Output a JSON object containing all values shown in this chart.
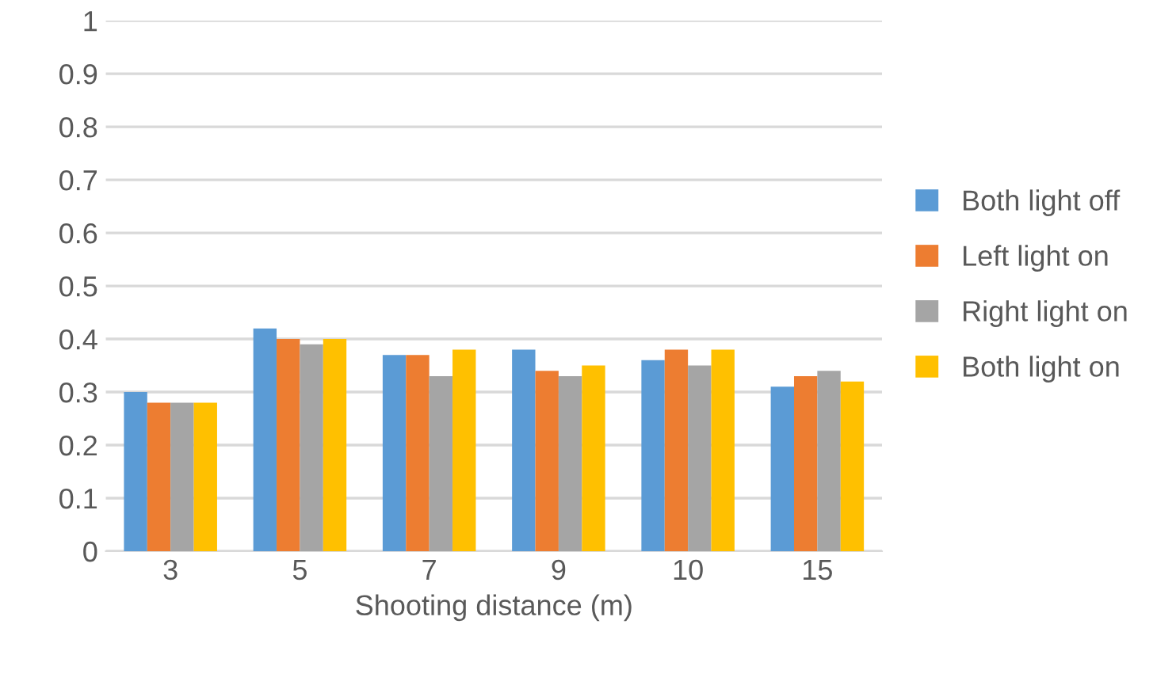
{
  "chart_data": {
    "type": "bar",
    "xlabel": "Shooting distance (m)",
    "categories": [
      "3",
      "5",
      "7",
      "9",
      "10",
      "15"
    ],
    "series": [
      {
        "name": "Both light off",
        "color": "#5b9bd5",
        "values": [
          0.3,
          0.42,
          0.37,
          0.38,
          0.36,
          0.31
        ]
      },
      {
        "name": "Left light on",
        "color": "#ed7d31",
        "values": [
          0.28,
          0.4,
          0.37,
          0.34,
          0.38,
          0.33
        ]
      },
      {
        "name": "Right light on",
        "color": "#a5a5a5",
        "values": [
          0.28,
          0.39,
          0.33,
          0.33,
          0.35,
          0.34
        ]
      },
      {
        "name": "Both light on",
        "color": "#ffc000",
        "values": [
          0.28,
          0.4,
          0.38,
          0.35,
          0.38,
          0.32
        ]
      }
    ],
    "ylim": [
      0,
      1
    ],
    "yticks": [
      0,
      0.1,
      0.2,
      0.3,
      0.4,
      0.5,
      0.6,
      0.7,
      0.8,
      0.9,
      1
    ],
    "grid": "y",
    "legend": "right"
  }
}
